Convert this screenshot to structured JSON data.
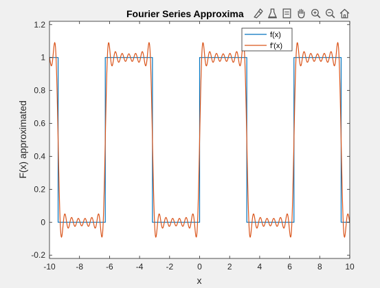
{
  "toolbar": {
    "icons": [
      "brush-icon",
      "data-tips-icon",
      "restore-view-icon",
      "pan-hand-icon",
      "zoom-in-icon",
      "zoom-out-icon",
      "home-icon"
    ]
  },
  "colors": {
    "figure_bg": "#f0f0f0",
    "axes_bg": "#ffffff",
    "series_f": "#0072bd",
    "series_fprime": "#d95319",
    "axis_text": "#262626",
    "axis_line": "#262626"
  },
  "chart_data": {
    "type": "line",
    "title": "Fourier Series Approxima",
    "xlabel": "x",
    "ylabel": "F(x) approximated",
    "xlim": [
      -10,
      10
    ],
    "ylim": [
      -0.22,
      1.22
    ],
    "xticks": [
      -10,
      -8,
      -6,
      -4,
      -2,
      0,
      2,
      4,
      6,
      8,
      10
    ],
    "yticks": [
      -0.2,
      0,
      0.2,
      0.4,
      0.6,
      0.8,
      1,
      1.2
    ],
    "grid": false,
    "legend_position": "top-right",
    "series": [
      {
        "name": "f(x)",
        "kind": "square wave",
        "period": 6.2832,
        "low": 0,
        "high": 1,
        "transitions_up": [
          -6.2832,
          0,
          6.2832
        ],
        "transitions_down": [
          -9.4248,
          -3.1416,
          3.1416,
          9.4248
        ]
      },
      {
        "name": "f'(x)",
        "kind": "fourier partial sum",
        "dc": 0.5,
        "harmonics": [
          1,
          3,
          5,
          7,
          9,
          11,
          13
        ],
        "amplitude_factor": 0.6366
      }
    ]
  }
}
